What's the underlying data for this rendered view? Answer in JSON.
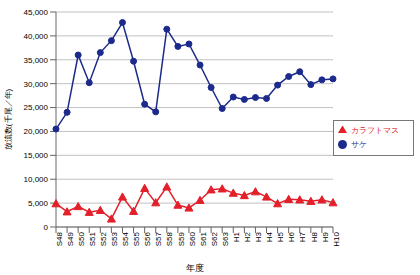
{
  "chart_data": {
    "type": "line",
    "x_label": "年度",
    "y_label": "放流数(千尾／年)",
    "categories": [
      "S48",
      "S49",
      "S50",
      "S51",
      "S52",
      "S53",
      "S54",
      "S55",
      "S56",
      "S57",
      "S58",
      "S59",
      "S60",
      "S61",
      "S62",
      "S63",
      "H1",
      "H2",
      "H3",
      "H4",
      "H5",
      "H6",
      "H7",
      "H8",
      "H9",
      "H10"
    ],
    "series": [
      {
        "name": "サケ",
        "color": "#1c2a8c",
        "marker": "circle",
        "values": [
          20500,
          24000,
          36000,
          30200,
          36500,
          39000,
          42800,
          34700,
          25700,
          24100,
          41400,
          37800,
          38300,
          33900,
          29200,
          24800,
          27200,
          26700,
          27100,
          26900,
          29700,
          31500,
          32500,
          29800,
          30800,
          31000
        ]
      },
      {
        "name": "カラフトマス",
        "color": "#e3202a",
        "marker": "triangle",
        "values": [
          4900,
          3200,
          4300,
          3100,
          3500,
          1700,
          6300,
          3300,
          8100,
          5100,
          8400,
          4600,
          4000,
          5600,
          7800,
          8000,
          7100,
          6600,
          7400,
          6300,
          4900,
          5800,
          5700,
          5400,
          5700,
          5100
        ]
      }
    ],
    "ylim": [
      0,
      45000
    ],
    "yticks": [
      0,
      {
        "value": 5000,
        "label": "5,000"
      },
      {
        "value": 10000,
        "label": "10,000"
      },
      {
        "value": 15000,
        "label": "15,000"
      },
      {
        "value": 20000,
        "label": "20,000"
      },
      {
        "value": 25000,
        "label": "25,000"
      },
      {
        "value": 30000,
        "label": "30,000"
      },
      {
        "value": 35000,
        "label": "35,000"
      },
      {
        "value": 40000,
        "label": "40,000"
      },
      {
        "value": 45000,
        "label": "45,000"
      }
    ],
    "grid": true,
    "legend": "right"
  }
}
